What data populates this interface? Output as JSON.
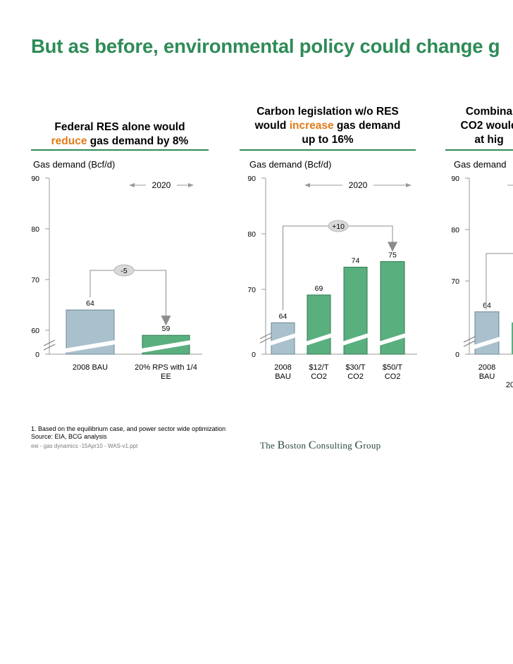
{
  "title": "But as before, environmental policy could change g",
  "footnotes": {
    "note": "1. Based on the equilibrium case, and power sector wide optimization",
    "source": "Source: EIA, BCG analysis",
    "file": "eei - gas dynamics -15Apr10 - WAS-v1.ppt"
  },
  "logo": {
    "the": "The ",
    "b": "B",
    "oston": "oston ",
    "c": "C",
    "onsulting": "onsulting ",
    "g": "G",
    "roup": "roup"
  },
  "colors": {
    "title": "#2e8b57",
    "highlight": "#e07b1a",
    "base_bar": "#a9c1cc",
    "green_bar": "#5aaf7f",
    "arrow": "#8c8c8c"
  },
  "chart_data": [
    {
      "type": "bar",
      "header_lines": [
        [
          {
            "t": "Federal RES alone would",
            "h": false
          }
        ],
        [
          {
            "t": "reduce",
            "h": true
          },
          {
            "t": " gas demand by 8%",
            "h": false
          }
        ]
      ],
      "ylabel": "Gas demand (Bcf/d)",
      "yticks": [
        90,
        80,
        70,
        60,
        0
      ],
      "period_label": "2020",
      "categories": [
        "2008 BAU",
        "20% RPS with 1/4 EE"
      ],
      "values": [
        64,
        59
      ],
      "delta_label": "-5"
    },
    {
      "type": "bar",
      "header_lines": [
        [
          {
            "t": "Carbon legislation w/o RES",
            "h": false
          }
        ],
        [
          {
            "t": "would ",
            "h": false
          },
          {
            "t": "increase",
            "h": true
          },
          {
            "t": " gas demand",
            "h": false
          }
        ],
        [
          {
            "t": "up to 16%",
            "h": false
          }
        ]
      ],
      "ylabel": "Gas demand (Bcf/d)",
      "yticks": [
        90,
        80,
        70,
        0
      ],
      "period_label": "2020",
      "categories": [
        "2008 BAU",
        "$12/T CO2",
        "$30/T CO2",
        "$50/T CO2"
      ],
      "values": [
        64,
        69,
        74,
        75
      ],
      "delta_label": "+10"
    },
    {
      "type": "bar",
      "header_lines": [
        [
          {
            "t": "Combina",
            "h": false
          }
        ],
        [
          {
            "t": "CO2 would",
            "h": false
          }
        ],
        [
          {
            "t": "at hig",
            "h": false
          }
        ]
      ],
      "ylabel": "Gas demand",
      "yticks": [
        90,
        80,
        70,
        0
      ],
      "period_label": "20",
      "categories": [
        "2008 BAU"
      ],
      "values": [
        64
      ]
    }
  ]
}
